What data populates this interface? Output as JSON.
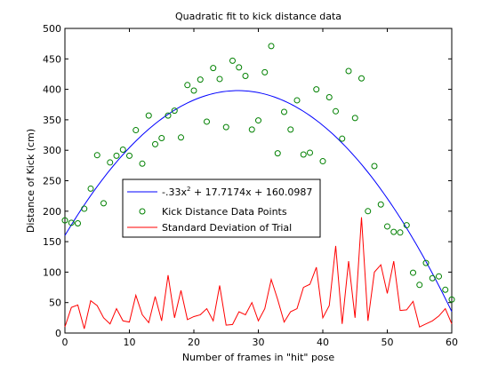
{
  "chart_data": {
    "type": "scatter",
    "title": "Quadratic fit to kick distance data",
    "xlabel": "Number of frames in \"hit\" pose",
    "ylabel": "Distance of Kick (cm)",
    "xlim": [
      0,
      60
    ],
    "ylim": [
      0,
      500
    ],
    "xticks": [
      0,
      10,
      20,
      30,
      40,
      50,
      60
    ],
    "yticks": [
      0,
      50,
      100,
      150,
      200,
      250,
      300,
      350,
      400,
      450,
      500
    ],
    "grid": false,
    "legend_position": "center-left",
    "fit": {
      "label_prefix": "-.33x",
      "label_exponent": "2",
      "label_suffix": " + 17.7174x + 160.0987",
      "a": -0.33,
      "b": 17.7174,
      "c": 160.0987,
      "color": "#0000ff"
    },
    "series": [
      {
        "name": "Kick Distance Data Points",
        "marker": "circle",
        "color": "#008000",
        "x": [
          0,
          1,
          2,
          3,
          4,
          5,
          6,
          7,
          8,
          9,
          10,
          11,
          12,
          13,
          14,
          15,
          16,
          17,
          18,
          19,
          20,
          21,
          22,
          23,
          24,
          25,
          26,
          27,
          28,
          29,
          30,
          31,
          32,
          33,
          34,
          35,
          36,
          37,
          38,
          39,
          40,
          41,
          42,
          43,
          44,
          45,
          46,
          47,
          48,
          49,
          50,
          51,
          52,
          53,
          54,
          55,
          56,
          57,
          58,
          59,
          60
        ],
        "y": [
          185,
          181,
          180,
          204,
          237,
          292,
          213,
          280,
          291,
          301,
          291,
          333,
          278,
          357,
          310,
          320,
          357,
          365,
          321,
          407,
          398,
          416,
          347,
          435,
          417,
          338,
          447,
          436,
          422,
          334,
          349,
          428,
          471,
          295,
          363,
          334,
          382,
          293,
          296,
          400,
          282,
          387,
          364,
          319,
          430,
          353,
          418,
          200,
          274,
          211,
          175,
          166,
          165,
          177,
          99,
          79,
          115,
          90,
          93,
          71,
          55
        ]
      },
      {
        "name": "Standard Deviation of Trial",
        "marker": "line",
        "color": "#ff0000",
        "x": [
          0,
          1,
          2,
          3,
          4,
          5,
          6,
          7,
          8,
          9,
          10,
          11,
          12,
          13,
          14,
          15,
          16,
          17,
          18,
          19,
          20,
          21,
          22,
          23,
          24,
          25,
          26,
          27,
          28,
          29,
          30,
          31,
          32,
          33,
          34,
          35,
          36,
          37,
          38,
          39,
          40,
          41,
          42,
          43,
          44,
          45,
          46,
          47,
          48,
          49,
          50,
          51,
          52,
          53,
          54,
          55,
          56,
          57,
          58,
          59,
          60
        ],
        "y": [
          10,
          42,
          46,
          7,
          53,
          45,
          25,
          15,
          40,
          20,
          18,
          62,
          30,
          17,
          60,
          20,
          95,
          25,
          70,
          22,
          27,
          30,
          40,
          20,
          78,
          13,
          14,
          35,
          30,
          50,
          20,
          40,
          88,
          55,
          18,
          35,
          40,
          75,
          80,
          108,
          25,
          45,
          143,
          15,
          118,
          25,
          190,
          20,
          100,
          112,
          65,
          118,
          37,
          38,
          52,
          10,
          15,
          20,
          28,
          40,
          15
        ]
      }
    ]
  }
}
